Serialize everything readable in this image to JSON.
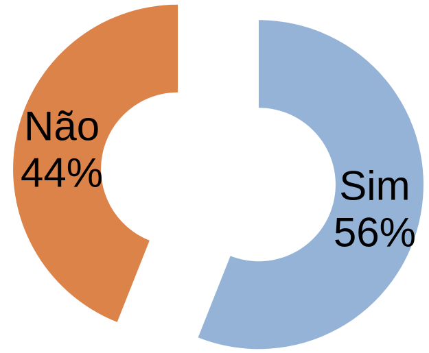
{
  "chart_data": {
    "type": "pie",
    "variant": "exploded-donut",
    "categories": [
      "Sim",
      "Não"
    ],
    "values": [
      56,
      44
    ],
    "value_labels": [
      "56%",
      "44%"
    ],
    "colors": [
      "#95B3D7",
      "#DC8349"
    ],
    "title": "",
    "legend": "none"
  }
}
